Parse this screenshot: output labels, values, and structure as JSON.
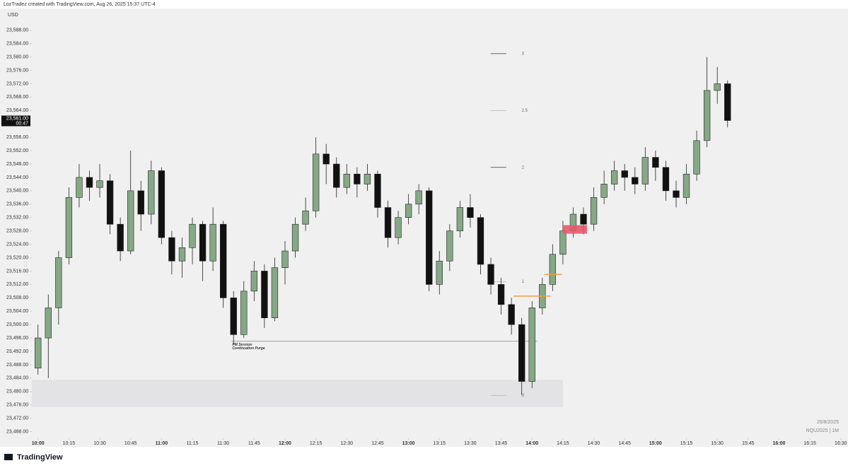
{
  "header": {
    "text": "LozTradez created with TradingView.com, Aug 26, 2025 15:37 UTC-4"
  },
  "footer": {
    "logo": "TradingView",
    "date": "26/8/2025",
    "symbol": "NQU2025 | 1M"
  },
  "chart_data": {
    "type": "candlestick",
    "currency": "USD",
    "x": [
      600,
      605,
      610,
      615,
      620,
      625,
      630,
      635,
      640,
      645,
      650,
      655,
      660,
      665,
      670,
      675,
      680,
      685,
      690,
      695,
      700,
      705,
      710,
      715,
      720,
      725,
      730,
      735,
      740,
      745,
      750,
      755,
      760,
      765,
      770,
      775,
      780,
      785,
      790,
      795,
      800,
      805,
      810,
      815,
      820,
      825,
      830,
      835,
      840,
      845,
      850,
      855,
      860,
      865,
      870,
      875,
      880,
      885,
      890,
      895,
      900,
      905,
      910,
      915,
      920,
      925,
      930,
      935
    ],
    "open": [
      23487,
      23496,
      23505,
      23520,
      23538,
      23544,
      23541,
      23543,
      23530,
      23522,
      23540,
      23533,
      23546,
      23526,
      23519,
      23523,
      23530,
      23519,
      23530,
      23508,
      23497,
      23510,
      23516,
      23502,
      23517,
      23522,
      23530,
      23534,
      23551,
      23548,
      23541,
      23545,
      23542,
      23545,
      23535,
      23526,
      23532,
      23536,
      23540,
      23512,
      23519,
      23528,
      23535,
      23532,
      23518,
      23512,
      23506,
      23500,
      23483,
      23505,
      23512,
      23521,
      23528,
      23533,
      23530,
      23538,
      23542,
      23546,
      23544,
      23542,
      23550,
      23547,
      23540,
      23538,
      23545,
      23555,
      23570,
      23572
    ],
    "high": [
      23500,
      23509,
      23522,
      23541,
      23548,
      23546,
      23548,
      23545,
      23532,
      23552,
      23543,
      23549,
      23547,
      23528,
      23526,
      23532,
      23531,
      23535,
      23531,
      23510,
      23513,
      23519,
      23518,
      23520,
      23525,
      23532,
      23538,
      23556,
      23554,
      23550,
      23548,
      23547,
      23548,
      23546,
      23537,
      23534,
      23539,
      23542,
      23541,
      23522,
      23530,
      23537,
      23539,
      23533,
      23520,
      23514,
      23508,
      23502,
      23507,
      23514,
      23524,
      23531,
      23535,
      23535,
      23541,
      23546,
      23549,
      23548,
      23547,
      23553,
      23552,
      23549,
      23543,
      23548,
      23558,
      23580,
      23577,
      23573
    ],
    "low": [
      23485,
      23484,
      23500,
      23518,
      23535,
      23537,
      23538,
      23527,
      23519,
      23521,
      23528,
      23530,
      23524,
      23515,
      23514,
      23518,
      23513,
      23516,
      23505,
      23494,
      23496,
      23507,
      23499,
      23501,
      23512,
      23520,
      23528,
      23532,
      23542,
      23538,
      23539,
      23538,
      23540,
      23532,
      23523,
      23524,
      23530,
      23533,
      23510,
      23509,
      23516,
      23526,
      23529,
      23515,
      23509,
      23503,
      23497,
      23479,
      23481,
      23503,
      23510,
      23518,
      23526,
      23527,
      23528,
      23536,
      23540,
      23540,
      23539,
      23540,
      23543,
      23537,
      23535,
      23536,
      23543,
      23553,
      23566,
      23559
    ],
    "close": [
      23496,
      23505,
      23520,
      23538,
      23544,
      23541,
      23543,
      23530,
      23522,
      23540,
      23533,
      23546,
      23526,
      23519,
      23523,
      23530,
      23519,
      23530,
      23508,
      23497,
      23510,
      23516,
      23502,
      23517,
      23522,
      23530,
      23534,
      23551,
      23548,
      23541,
      23545,
      23542,
      23545,
      23535,
      23526,
      23532,
      23536,
      23540,
      23512,
      23519,
      23528,
      23535,
      23532,
      23518,
      23512,
      23506,
      23500,
      23483,
      23505,
      23512,
      23521,
      23528,
      23533,
      23530,
      23538,
      23542,
      23546,
      23544,
      23542,
      23550,
      23547,
      23540,
      23538,
      23545,
      23555,
      23570,
      23572,
      23561
    ],
    "up_color": "#86a886",
    "down_color": "#111111",
    "ylim": [
      23466,
      23594.5
    ],
    "yticks": [
      {
        "value": 23468,
        "label": "23,468.00"
      },
      {
        "value": 23472,
        "label": "23,472.00"
      },
      {
        "value": 23476,
        "label": "23,476.00"
      },
      {
        "value": 23480,
        "label": "23,480.00"
      },
      {
        "value": 23484,
        "label": "23,484.00"
      },
      {
        "value": 23488,
        "label": "23,488.00"
      },
      {
        "value": 23492,
        "label": "23,492.00"
      },
      {
        "value": 23496,
        "label": "23,496.00"
      },
      {
        "value": 23500,
        "label": "23,500.00"
      },
      {
        "value": 23504,
        "label": "23,504.00"
      },
      {
        "value": 23508,
        "label": "23,508.00"
      },
      {
        "value": 23512,
        "label": "23,512.00"
      },
      {
        "value": 23516,
        "label": "23,516.00"
      },
      {
        "value": 23520,
        "label": "23,520.00"
      },
      {
        "value": 23524,
        "label": "23,524.00"
      },
      {
        "value": 23528,
        "label": "23,528.00"
      },
      {
        "value": 23532,
        "label": "23,532.00"
      },
      {
        "value": 23536,
        "label": "23,536.00"
      },
      {
        "value": 23540,
        "label": "23,540.00"
      },
      {
        "value": 23544,
        "label": "23,544.00"
      },
      {
        "value": 23548,
        "label": "23,548.00"
      },
      {
        "value": 23552,
        "label": "23,552.00"
      },
      {
        "value": 23556,
        "label": "23,556.00"
      },
      {
        "value": 23564,
        "label": "23,564.00"
      },
      {
        "value": 23568,
        "label": "23,568.00"
      },
      {
        "value": 23572,
        "label": "23,572.00"
      },
      {
        "value": 23576,
        "label": "23,576.00"
      },
      {
        "value": 23580,
        "label": "23,580.00"
      },
      {
        "value": 23584,
        "label": "23,584.00"
      },
      {
        "value": 23588,
        "label": "23,588.00"
      }
    ],
    "xlim": [
      597,
      993.5
    ],
    "xticks": [
      {
        "value": 600,
        "label": "10:00",
        "major": true
      },
      {
        "value": 615,
        "label": "10:15"
      },
      {
        "value": 630,
        "label": "10:30"
      },
      {
        "value": 645,
        "label": "10:45"
      },
      {
        "value": 660,
        "label": "11:00",
        "major": true
      },
      {
        "value": 675,
        "label": "11:15"
      },
      {
        "value": 690,
        "label": "11:30"
      },
      {
        "value": 705,
        "label": "11:45"
      },
      {
        "value": 720,
        "label": "12:00",
        "major": true
      },
      {
        "value": 735,
        "label": "12:15"
      },
      {
        "value": 750,
        "label": "12:30"
      },
      {
        "value": 765,
        "label": "12:45"
      },
      {
        "value": 780,
        "label": "13:00",
        "major": true
      },
      {
        "value": 795,
        "label": "13:15"
      },
      {
        "value": 810,
        "label": "13:30"
      },
      {
        "value": 825,
        "label": "13:45"
      },
      {
        "value": 840,
        "label": "14:00",
        "major": true
      },
      {
        "value": 855,
        "label": "14:15"
      },
      {
        "value": 870,
        "label": "14:30"
      },
      {
        "value": 885,
        "label": "14:45"
      },
      {
        "value": 900,
        "label": "15:00",
        "major": true
      },
      {
        "value": 915,
        "label": "15:15"
      },
      {
        "value": 930,
        "label": "15:30"
      },
      {
        "value": 945,
        "label": "15:45"
      },
      {
        "value": 960,
        "label": "16:00",
        "major": true
      },
      {
        "value": 975,
        "label": "16:15"
      },
      {
        "value": 990,
        "label": "16:30"
      }
    ],
    "price_label": {
      "value": 23561,
      "label": "23,561.00",
      "countdown": "00:47"
    },
    "fib_levels": [
      {
        "value": 23581,
        "label": "3"
      },
      {
        "value": 23564,
        "label": "2.5"
      },
      {
        "value": 23547,
        "label": "2"
      },
      {
        "value": 23512.8,
        "label": "1"
      },
      {
        "value": 23478.8,
        "label": "0"
      }
    ],
    "fib_x": [
      827.5,
      836
    ],
    "annotation": {
      "lines": [
        "PM Session",
        "Continuation Purge"
      ],
      "value": 23495,
      "x": [
        694,
        842.6
      ]
    },
    "zone": {
      "from": 23475.3,
      "to": 23483.5,
      "x": [
        597,
        855
      ],
      "color": "#e3e3e5"
    },
    "red_box": {
      "from": 23527.6,
      "to": 23529.3,
      "x": [
        855,
        866.7
      ],
      "color": "#e8586a"
    },
    "orange_lines": [
      {
        "value": 23508.5,
        "x": [
          831,
          849
        ]
      },
      {
        "value": 23515,
        "x": [
          846,
          854.6
        ]
      }
    ],
    "orange_color": "#f0a040"
  }
}
